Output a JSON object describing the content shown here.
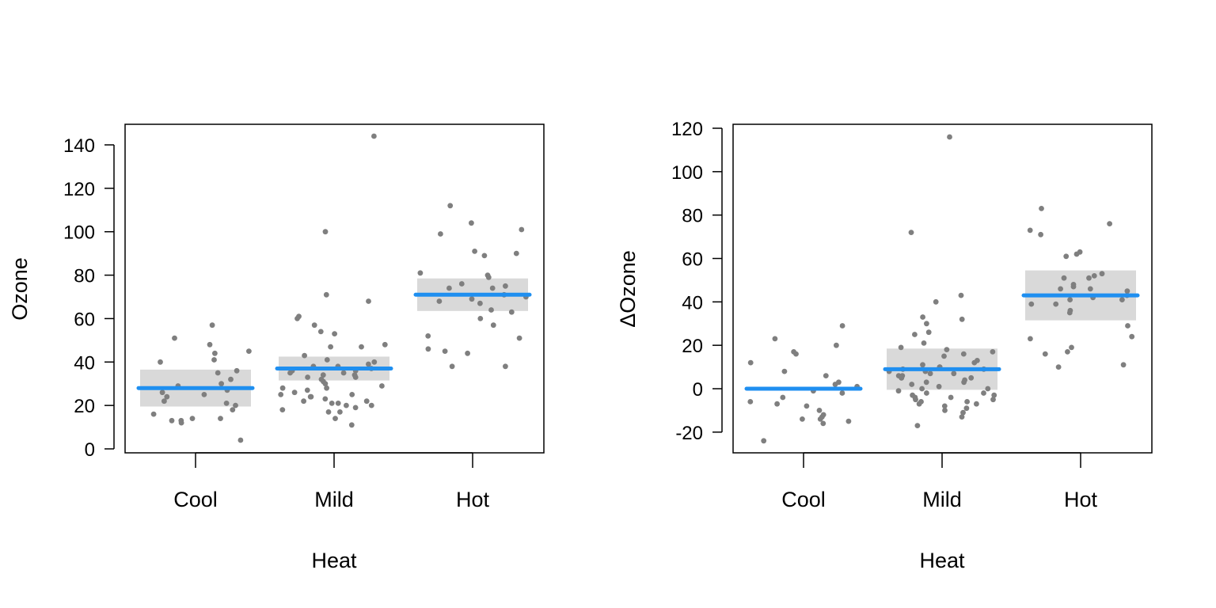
{
  "colors": {
    "points": "#7f7f7f",
    "fit_line": "#1f8ff0",
    "band": "#d9d9d9",
    "axis": "#000000"
  },
  "chart_data": [
    {
      "type": "scatter",
      "xlabel": "Heat",
      "ylabel": "Ozone",
      "categories": [
        "Cool",
        "Mild",
        "Hot"
      ],
      "ylim": [
        -3,
        148
      ],
      "yticks": [
        0,
        20,
        40,
        60,
        80,
        100,
        120,
        140
      ],
      "grid": false,
      "group_means": [
        28,
        37,
        71
      ],
      "confidence_bands": [
        [
          19.5,
          36.5
        ],
        [
          31.5,
          42.5
        ],
        [
          63.5,
          78.5
        ]
      ],
      "points": [
        {
          "category": "Cool",
          "values": [
            57,
            51,
            48,
            45,
            44,
            41,
            40,
            36,
            35,
            32,
            30,
            29,
            27,
            26,
            25,
            24,
            22,
            21,
            20,
            18,
            16,
            14,
            14,
            13,
            13,
            12,
            4
          ]
        },
        {
          "category": "Mild",
          "values": [
            144,
            100,
            71,
            68,
            61,
            60,
            57,
            54,
            53,
            48,
            47,
            47,
            43,
            41,
            40,
            39,
            38,
            38,
            37,
            36,
            36,
            35,
            35,
            34,
            34,
            33,
            33,
            32,
            31,
            30,
            29,
            28,
            28,
            27,
            26,
            25,
            25,
            24,
            24,
            23,
            22,
            22,
            21,
            21,
            20,
            20,
            19,
            18,
            17,
            17,
            14,
            11
          ]
        },
        {
          "category": "Hot",
          "values": [
            112,
            104,
            101,
            99,
            91,
            90,
            89,
            81,
            80,
            79,
            76,
            75,
            74,
            74,
            71,
            70,
            69,
            68,
            67,
            64,
            63,
            60,
            57,
            52,
            51,
            46,
            45,
            44,
            38,
            38
          ]
        }
      ]
    },
    {
      "type": "scatter",
      "xlabel": "Heat",
      "ylabel": "ΔOzone",
      "categories": [
        "Cool",
        "Mild",
        "Hot"
      ],
      "ylim": [
        -30,
        122
      ],
      "yticks": [
        -20,
        0,
        20,
        40,
        60,
        80,
        100,
        120
      ],
      "grid": false,
      "group_means": [
        0,
        9,
        43
      ],
      "confidence_bands": null,
      "confidence_bands_shown": [
        null,
        [
          -0.5,
          18.5
        ],
        [
          31.5,
          54.5
        ]
      ],
      "points": [
        {
          "category": "Cool",
          "values": [
            29,
            23,
            20,
            17,
            16,
            12,
            8,
            6,
            3,
            2,
            1,
            -1,
            -2,
            -4,
            -6,
            -7,
            -8,
            -10,
            -12,
            -13,
            -14,
            -14,
            -15,
            -16,
            -24
          ]
        },
        {
          "category": "Mild",
          "values": [
            116,
            72,
            43,
            40,
            33,
            32,
            30,
            26,
            25,
            21,
            19,
            18,
            17,
            16,
            15,
            13,
            12,
            11,
            10,
            10,
            9,
            9,
            8,
            8,
            7,
            7,
            6,
            6,
            5,
            5,
            5,
            4,
            3,
            3,
            2,
            1,
            0,
            0,
            -1,
            -2,
            -2,
            -3,
            -3,
            -4,
            -4,
            -5,
            -5,
            -6,
            -6,
            -7,
            -7,
            -8,
            -9,
            -10,
            -11,
            -13,
            -17
          ]
        },
        {
          "category": "Hot",
          "values": [
            83,
            76,
            73,
            71,
            63,
            62,
            61,
            53,
            52,
            51,
            51,
            48,
            47,
            46,
            46,
            45,
            43,
            42,
            41,
            41,
            39,
            39,
            36,
            35,
            29,
            24,
            23,
            19,
            17,
            16,
            11,
            10
          ]
        }
      ]
    }
  ]
}
